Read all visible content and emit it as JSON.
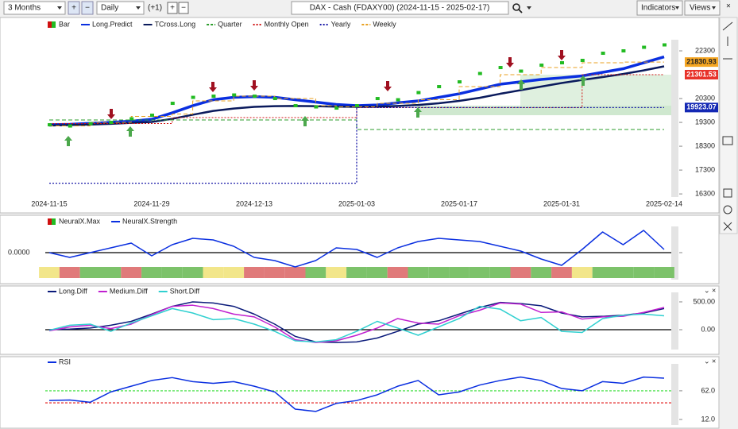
{
  "toolbar": {
    "period": "3 Months",
    "interval": "Daily",
    "offset": "(+1)",
    "title": "DAX - Cash (FDAXY00) (2024-11-15 - 2025-02-17)",
    "indicators": "Indicators",
    "views": "Views"
  },
  "chart_data": [
    {
      "type": "line",
      "categories": [
        "2024-11-15",
        null,
        null,
        null,
        null,
        "2024-11-29",
        null,
        null,
        null,
        null,
        "2024-12-13",
        null,
        null,
        null,
        null,
        "2025-01-03",
        null,
        null,
        null,
        null,
        "2025-01-17",
        null,
        null,
        null,
        null,
        "2025-01-31",
        null,
        null,
        null,
        null,
        "2025-02-14"
      ],
      "ylim": [
        16170,
        23600
      ],
      "yticks": [
        22300,
        20300,
        19300,
        18300,
        17300,
        16300
      ],
      "series": [
        {
          "name": "Bar",
          "style": "bar",
          "color": "#22bb22",
          "values": [
            19200,
            19150,
            19250,
            19300,
            19450,
            19600,
            20100,
            20350,
            20400,
            20450,
            20400,
            20300,
            20000,
            19950,
            19900,
            20000,
            20300,
            20250,
            20550,
            20800,
            21000,
            21350,
            21600,
            21450,
            21700,
            21800,
            21900,
            22200,
            22300,
            22450,
            22550
          ]
        },
        {
          "name": "Long.Predict",
          "style": "solid",
          "width": 3.5,
          "color": "#0a2fe0",
          "values": [
            19200,
            19220,
            19260,
            19300,
            19350,
            19430,
            19700,
            20000,
            20250,
            20350,
            20380,
            20350,
            20250,
            20150,
            20050,
            20000,
            20030,
            20120,
            20200,
            20350,
            20500,
            20700,
            20900,
            21000,
            21100,
            21170,
            21250,
            21400,
            21550,
            21800,
            22050
          ]
        },
        {
          "name": "TCross.Long",
          "style": "solid",
          "width": 2.5,
          "color": "#0a1a5c",
          "values": [
            19170,
            19190,
            19210,
            19240,
            19280,
            19320,
            19450,
            19620,
            19780,
            19880,
            19950,
            19980,
            19990,
            19980,
            19960,
            19950,
            19960,
            19990,
            20030,
            20100,
            20200,
            20330,
            20500,
            20650,
            20800,
            20950,
            21080,
            21200,
            21330,
            21480,
            21650
          ]
        },
        {
          "name": "Quarter",
          "style": "step-dashed",
          "width": 1,
          "color": "#2e9e2e",
          "values": [
            19400,
            19400,
            19400,
            19400,
            19400,
            19400,
            19400,
            19400,
            19400,
            19400,
            19400,
            19400,
            19400,
            19400,
            19400,
            19000,
            19000,
            19000,
            19000,
            19000,
            19000,
            19000,
            19000,
            19000,
            19000,
            19000,
            19000,
            19000,
            19000,
            19000,
            19000
          ]
        },
        {
          "name": "Monthly Open",
          "style": "step-dotted",
          "width": 1,
          "color": "#d01010",
          "values": [
            19250,
            19250,
            19250,
            19250,
            19250,
            19250,
            19500,
            19500,
            19500,
            19500,
            19500,
            19500,
            19500,
            19500,
            19500,
            19920,
            19920,
            19920,
            19920,
            19920,
            19920,
            19920,
            19920,
            19920,
            19920,
            19920,
            21301.53,
            21301.53,
            21301.53,
            21301.53,
            21301.53
          ]
        },
        {
          "name": "Yearly",
          "style": "step-dotted",
          "width": 1.3,
          "color": "#1a1aa8",
          "values": [
            16750,
            16750,
            16750,
            16750,
            16750,
            16750,
            16750,
            16750,
            16750,
            16750,
            16750,
            16750,
            16750,
            16750,
            16750,
            19923.07,
            19923.07,
            19923.07,
            19923.07,
            19923.07,
            19923.07,
            19923.07,
            19923.07,
            19923.07,
            19923.07,
            19923.07,
            19923.07,
            19923.07,
            19923.07,
            19923.07,
            19923.07
          ]
        },
        {
          "name": "Weekly",
          "style": "step-dashed",
          "width": 1,
          "color": "#e8a020",
          "values": [
            19150,
            19150,
            19300,
            19300,
            19550,
            19550,
            19650,
            20200,
            20200,
            20400,
            20400,
            20300,
            20300,
            20000,
            19950,
            19950,
            20100,
            20100,
            20250,
            20250,
            20800,
            20800,
            21300,
            21300,
            21600,
            21600,
            21800,
            21800,
            21830.93,
            21830.93,
            21830.93
          ]
        }
      ],
      "badges": [
        {
          "value": 21830.93,
          "color": "#f5a623"
        },
        {
          "value": 21301.53,
          "color": "#e8322a"
        },
        {
          "value": 19923.07,
          "color": "#1428b4"
        }
      ]
    },
    {
      "type": "line",
      "ylim": [
        -1.7,
        1.65
      ],
      "yticks": [
        {
          "value": 0,
          "label": "0.0000"
        }
      ],
      "levels": [
        {
          "value": 0,
          "color": "#000000"
        }
      ],
      "strip": {
        "name": "NeuralX.Max",
        "colors": [
          "#f2e68a",
          "#e07a7a",
          "#7cc26a",
          "#7cc26a",
          "#e07a7a",
          "#7cc26a",
          "#7cc26a",
          "#7cc26a",
          "#f2e68a",
          "#f2e68a",
          "#e07a7a",
          "#e07a7a",
          "#e07a7a",
          "#7cc26a",
          "#f2e68a",
          "#7cc26a",
          "#7cc26a",
          "#e07a7a",
          "#7cc26a",
          "#7cc26a",
          "#7cc26a",
          "#7cc26a",
          "#7cc26a",
          "#e07a7a",
          "#7cc26a",
          "#e07a7a",
          "#f2e68a",
          "#7cc26a",
          "#7cc26a",
          "#7cc26a",
          "#7cc26a"
        ]
      },
      "series": [
        {
          "name": "NeuralX.Strength",
          "style": "solid",
          "width": 1.5,
          "color": "#0a2fe0",
          "values": [
            0,
            -0.3,
            0,
            0.3,
            0.6,
            -0.2,
            0.5,
            0.9,
            0.8,
            0.4,
            -0.3,
            -0.5,
            -0.9,
            -0.5,
            0.3,
            0.2,
            -0.3,
            0.3,
            0.7,
            0.9,
            0.8,
            0.7,
            0.4,
            0.1,
            -0.4,
            -0.8,
            0.2,
            1.3,
            0.5,
            1.4,
            0.2
          ]
        }
      ]
    },
    {
      "type": "line",
      "ylim": [
        -357,
        671
      ],
      "yticks": [
        {
          "value": 500,
          "label": "500.00"
        },
        {
          "value": 0,
          "label": "0.00"
        }
      ],
      "levels": [
        {
          "value": 0,
          "color": "#000000"
        }
      ],
      "series": [
        {
          "name": "Long.Diff",
          "style": "solid",
          "width": 1.5,
          "color": "#0a1a7a",
          "values": [
            0,
            10,
            30,
            80,
            150,
            280,
            420,
            500,
            480,
            420,
            280,
            100,
            -120,
            -220,
            -230,
            -220,
            -150,
            -30,
            100,
            160,
            280,
            400,
            490,
            470,
            430,
            300,
            230,
            240,
            260,
            300,
            380
          ]
        },
        {
          "name": "Medium.Diff",
          "style": "solid",
          "width": 1.5,
          "color": "#c020d0",
          "values": [
            -20,
            50,
            80,
            20,
            100,
            270,
            420,
            440,
            380,
            280,
            230,
            50,
            -180,
            -230,
            -200,
            -100,
            30,
            200,
            120,
            100,
            250,
            350,
            480,
            460,
            310,
            320,
            190,
            230,
            240,
            310,
            400
          ]
        },
        {
          "name": "Short.Diff",
          "style": "solid",
          "width": 1.5,
          "color": "#30d0d0",
          "values": [
            -10,
            80,
            100,
            -30,
            120,
            250,
            380,
            300,
            180,
            200,
            100,
            -30,
            -200,
            -220,
            -180,
            -30,
            150,
            30,
            -100,
            50,
            200,
            420,
            370,
            160,
            220,
            -30,
            -50,
            200,
            260,
            280,
            250
          ]
        }
      ]
    },
    {
      "type": "line",
      "ylim": [
        2.3,
        109
      ],
      "yticks": [
        {
          "value": 62,
          "label": "62.0"
        },
        {
          "value": 12,
          "label": "12.0"
        }
      ],
      "levels": [
        {
          "value": 62,
          "color": "#33dd33"
        },
        {
          "value": 41,
          "color": "#e01010"
        }
      ],
      "series": [
        {
          "name": "RSI",
          "style": "solid",
          "width": 1.5,
          "color": "#0a2fe0",
          "values": [
            45,
            46,
            42,
            60,
            70,
            80,
            85,
            78,
            75,
            78,
            70,
            60,
            30,
            26,
            40,
            45,
            55,
            70,
            80,
            55,
            60,
            72,
            80,
            86,
            80,
            66,
            62,
            78,
            75,
            86,
            84
          ]
        }
      ]
    }
  ]
}
